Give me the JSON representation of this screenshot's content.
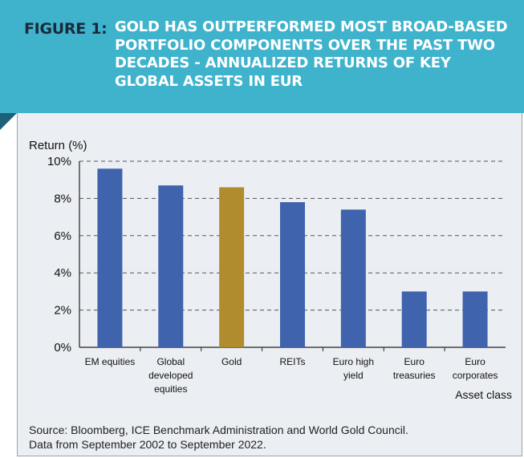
{
  "header": {
    "figure_label": "FIGURE 1:",
    "title": "GOLD HAS OUTPERFORMED MOST BROAD-BASED PORTFOLIO COMPONENTS OVER THE PAST TWO DECADES - ANNUALIZED RETURNS OF KEY GLOBAL ASSETS IN EUR"
  },
  "colors": {
    "banner": "#3fb3cc",
    "bar_default": "#3f63ad",
    "bar_gold": "#b08c2f",
    "panel": "#ebeef2"
  },
  "chart_data": {
    "type": "bar",
    "title": "",
    "ylabel": "Return (%)",
    "xlabel": "Asset class",
    "ylim": [
      0,
      10
    ],
    "yticks": [
      0,
      2,
      4,
      6,
      8,
      10
    ],
    "ytick_labels": [
      "0%",
      "2%",
      "4%",
      "6%",
      "8%",
      "10%"
    ],
    "grid": true,
    "categories": [
      [
        "EM equities"
      ],
      [
        "Global",
        "developed",
        "equities"
      ],
      [
        "Gold"
      ],
      [
        "REITs"
      ],
      [
        "Euro high",
        "yield"
      ],
      [
        "Euro",
        "treasuries"
      ],
      [
        "Euro",
        "corporates"
      ]
    ],
    "values": [
      9.6,
      8.7,
      8.6,
      7.8,
      7.4,
      3.0,
      3.0
    ],
    "highlight": [
      false,
      false,
      true,
      false,
      false,
      false,
      false
    ]
  },
  "footer": {
    "source_line1": "Source: Bloomberg, ICE Benchmark Administration and World Gold Council.",
    "source_line2": "Data from September 2002 to September 2022."
  }
}
